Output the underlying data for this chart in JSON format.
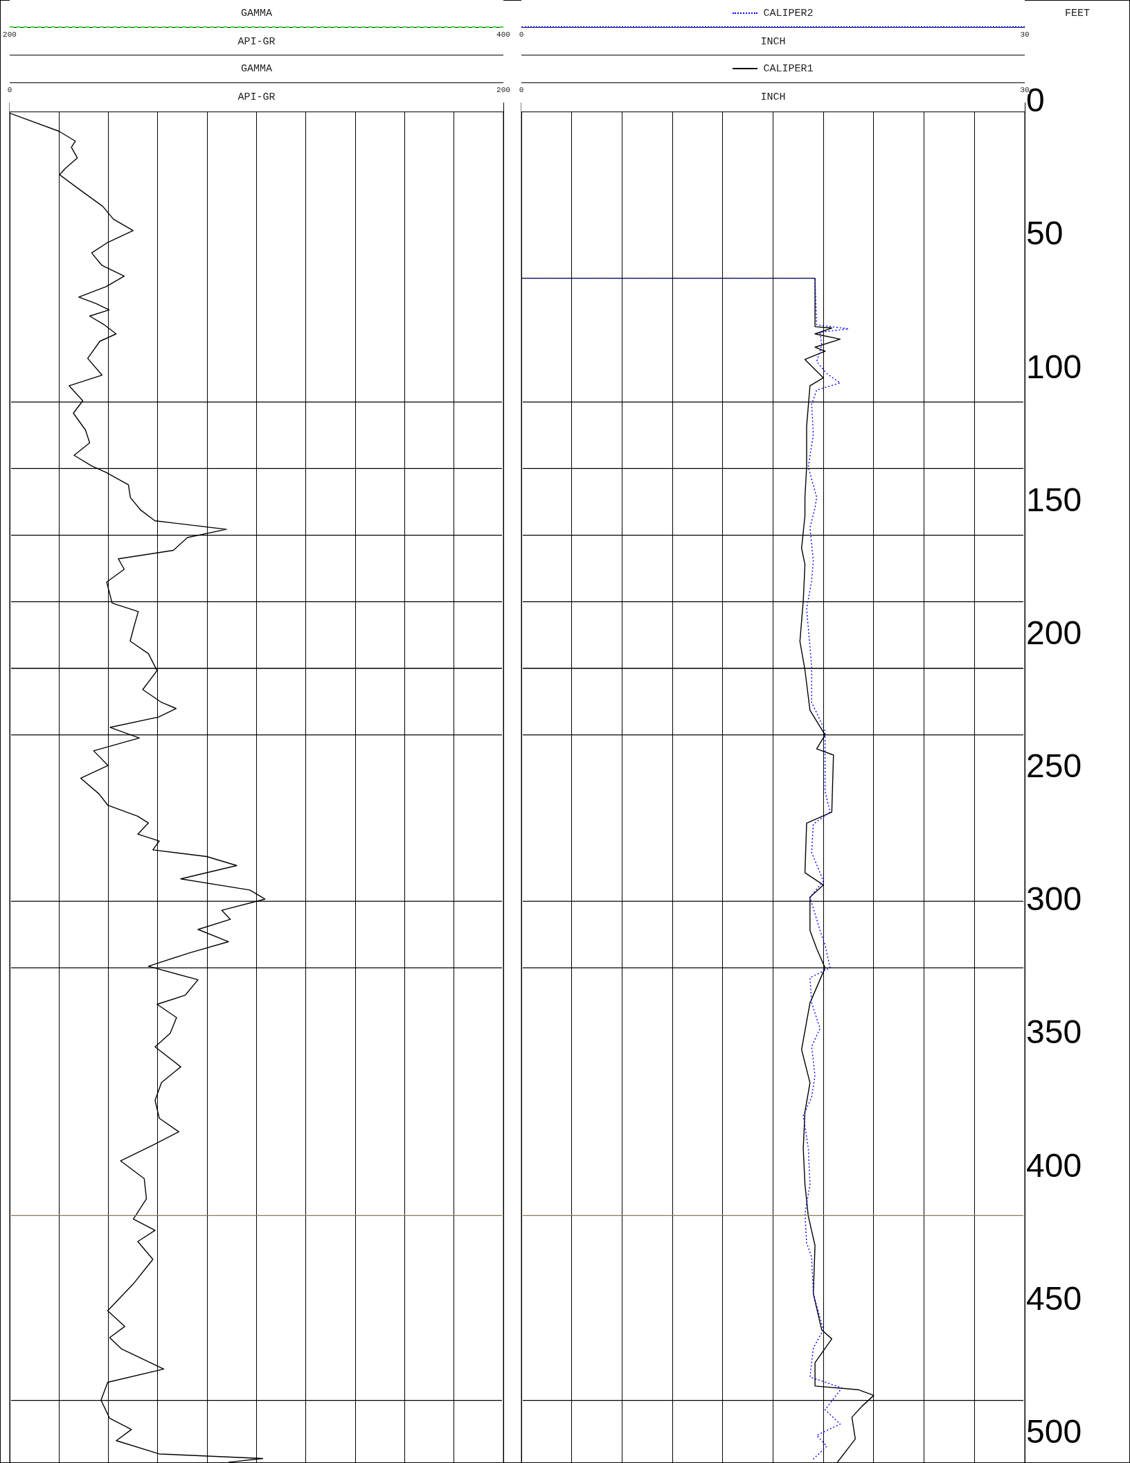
{
  "chart_data": [
    {
      "type": "line",
      "orientation": "horizontal",
      "title": "GAMMA",
      "xlabel": "API-GR",
      "x2label": "API-GR",
      "xlim": [
        0,
        200
      ],
      "x2lim": [
        200,
        400
      ],
      "ylim": [
        511,
        0
      ],
      "xticks": [
        0,
        {
          "value": 20,
          "label": null
        },
        {
          "value": 40,
          "label": null
        },
        {
          "value": 60,
          "label": null
        },
        {
          "value": 80,
          "label": null
        },
        {
          "value": 100,
          "label": null
        },
        {
          "value": 120,
          "label": null
        },
        {
          "value": 140,
          "label": null
        },
        {
          "value": 160,
          "label": null
        },
        {
          "value": 180,
          "label": null
        },
        200
      ],
      "x2ticks": [
        200,
        400
      ],
      "grid": "x",
      "tick_labels": "x",
      "line_style": "solid",
      "ref_lines": [
        {
          "axis": "y",
          "value": 112.5,
          "color": "#000000"
        },
        {
          "axis": "y",
          "value": 137.5,
          "color": "#000000"
        },
        {
          "axis": "y",
          "value": 162.5,
          "color": "#000000"
        },
        {
          "axis": "y",
          "value": 187.5,
          "color": "#000000"
        },
        {
          "axis": "y",
          "value": 212.5,
          "color": "#000000"
        },
        {
          "axis": "y",
          "value": 237.5,
          "color": "#000000"
        },
        {
          "axis": "y",
          "value": 300,
          "color": "#000000"
        },
        {
          "axis": "y",
          "value": 325,
          "color": "#000000"
        },
        {
          "axis": "y",
          "value": 418,
          "color": "#8b7355"
        },
        {
          "axis": "y",
          "value": 487.5,
          "color": "#000000"
        }
      ],
      "series": [
        {
          "name": "GAMMA",
          "color": "#000000",
          "x": [
            4,
            10.8,
            14.5,
            16.8,
            20.8,
            24.8,
            27.1,
            32.7,
            39,
            43.8,
            48.1,
            52.5,
            56.5,
            61.2,
            65.2,
            69.2,
            73.1,
            75.5,
            77.9,
            80.2,
            83.4,
            86.9,
            89.7,
            96.1,
            102.4,
            106.4,
            112,
            116.7,
            123,
            127.8,
            132.5,
            136.5,
            138.9,
            143.6,
            148.4,
            153.1,
            157.1,
            160.3,
            163.4,
            168.2,
            171.4,
            175.3,
            180.1,
            188,
            191.2,
            196.7,
            202.3,
            207,
            213.4,
            220.5,
            225.2,
            227.6,
            230.8,
            234.7,
            238.7,
            243.5,
            249,
            253.8,
            259.7,
            263.9,
            268.1,
            270.6,
            274.8,
            277.4,
            280.7,
            283.2,
            286.6,
            291.6,
            295.8,
            299.2,
            303.4,
            306.8,
            310.6,
            315.2,
            319.4,
            324.4,
            329.5,
            335.3,
            338.7,
            343.7,
            349.6,
            354.7,
            362.2,
            368.1,
            374.8,
            381.5,
            386.6,
            391.6,
            397.5,
            404.2,
            411.8,
            419.4,
            423.6,
            427.8,
            434.5,
            443.7,
            453.8,
            459.7,
            463.9,
            468.1,
            475.7,
            480.7,
            487.4,
            494.2,
            498.4,
            502.6,
            507.6,
            509.3,
            510.7
          ],
          "values": [
            0,
            20,
            26.6,
            25,
            27.4,
            22.5,
            20.2,
            28.3,
            37.7,
            42,
            50,
            39.8,
            33.2,
            37.4,
            46.4,
            39,
            28,
            34.9,
            40.3,
            32.4,
            38.2,
            43.1,
            36.5,
            31.6,
            37.4,
            24.1,
            29.6,
            25.8,
            30.7,
            32.4,
            26.1,
            33.2,
            39,
            48.1,
            48.9,
            53.1,
            58.8,
            87.8,
            72,
            66.3,
            44,
            46.4,
            39.3,
            41.5,
            52.1,
            50.4,
            48.8,
            56.2,
            59.7,
            53.9,
            61.3,
            67.4,
            60.3,
            40.7,
            52.5,
            34,
            39.8,
            28.8,
            36.2,
            39.7,
            51.9,
            56.2,
            51.9,
            60.6,
            58,
            79.8,
            92,
            69.3,
            97.3,
            103.4,
            85.9,
            89.4,
            76.3,
            88.6,
            72.8,
            56.2,
            76.3,
            71.1,
            59.7,
            67.6,
            65,
            58.9,
            69.3,
            61.5,
            58.9,
            60.6,
            68.5,
            58,
            44.9,
            54.5,
            55.4,
            50.1,
            58.9,
            51.9,
            58,
            50.1,
            39.7,
            46.6,
            40.5,
            45.2,
            62.4,
            39.7,
            37,
            40.5,
            49.3,
            43.2,
            60.6,
            102.5,
            88.6
          ]
        }
      ]
    },
    {
      "type": "line",
      "orientation": "horizontal",
      "xlabel": "INCH",
      "x2label": "INCH",
      "ylabel": "FEET",
      "xlim": [
        0,
        30
      ],
      "x2lim": [
        0,
        30
      ],
      "ylim": [
        511,
        0
      ],
      "xticks": [
        0,
        {
          "value": 3,
          "label": null
        },
        {
          "value": 6,
          "label": null
        },
        {
          "value": 9,
          "label": null
        },
        {
          "value": 12,
          "label": null
        },
        {
          "value": 15,
          "label": null
        },
        {
          "value": 18,
          "label": null
        },
        {
          "value": 21,
          "label": null
        },
        {
          "value": 24,
          "label": null
        },
        {
          "value": 27,
          "label": null
        },
        30
      ],
      "x2ticks": [
        0,
        30
      ],
      "yticks": [
        0,
        50,
        100,
        150,
        200,
        250,
        300,
        350,
        400,
        450,
        500
      ],
      "grid": "x",
      "legend": "top",
      "ref_lines": [
        {
          "axis": "y",
          "value": 112.5,
          "color": "#000000"
        },
        {
          "axis": "y",
          "value": 137.5,
          "color": "#000000"
        },
        {
          "axis": "y",
          "value": 162.5,
          "color": "#000000"
        },
        {
          "axis": "y",
          "value": 187.5,
          "color": "#000000"
        },
        {
          "axis": "y",
          "value": 212.5,
          "color": "#000000"
        },
        {
          "axis": "y",
          "value": 237.5,
          "color": "#000000"
        },
        {
          "axis": "y",
          "value": 300,
          "color": "#000000"
        },
        {
          "axis": "y",
          "value": 325,
          "color": "#000000"
        },
        {
          "axis": "y",
          "value": 418,
          "color": "#8b7355"
        },
        {
          "axis": "y",
          "value": 487.5,
          "color": "#000000"
        }
      ],
      "series": [
        {
          "name": "CALIPER2",
          "color": "#0000ff",
          "axis": "x2",
          "line_style": "dotted",
          "x": [
            66,
            66,
            83.5,
            85,
            86.3,
            91.2,
            97.3,
            101.8,
            105.3,
            108,
            113.3,
            124.7,
            136.9,
            148.3,
            152.1,
            159.8,
            172,
            179.6,
            190.2,
            211.6,
            225.3,
            236,
            243.6,
            258.8,
            266.5,
            271,
            281.7,
            292.4,
            298.5,
            311,
            316.4,
            325,
            328.7,
            338.2,
            347.8,
            354.6,
            365.5,
            373.6,
            380.5,
            392.8,
            406.4,
            417.4,
            428.3,
            433.7,
            447.4,
            461,
            467.8,
            478.7,
            482.8,
            491,
            496.4,
            500.6,
            504.7,
            510.1
          ],
          "values": [
            0,
            17.5,
            17.6,
            19.5,
            17.8,
            17.9,
            17.6,
            18.2,
            19,
            17.6,
            17.3,
            17.4,
            17.1,
            17.6,
            17.5,
            17.2,
            17.4,
            17.3,
            17,
            17.3,
            17.3,
            18.1,
            18.1,
            18.1,
            18.4,
            17.4,
            17.3,
            18,
            17.2,
            17.8,
            18.1,
            18.4,
            17.2,
            17.3,
            17.8,
            17.3,
            17.5,
            17.3,
            16.8,
            17.1,
            17.2,
            16.9,
            17,
            17.3,
            17.4,
            18,
            17.4,
            17.2,
            19.1,
            18.1,
            19,
            17.6,
            18.2,
            17.3
          ]
        },
        {
          "name": "CALIPER1",
          "color": "#000000",
          "line_style": "solid",
          "x": [
            66,
            66,
            84.2,
            84.7,
            86.9,
            88.9,
            91.9,
            93.4,
            96.5,
            103.4,
            106.4,
            121.6,
            136.9,
            148.3,
            155.2,
            167.4,
            173.5,
            187.2,
            202.4,
            213.1,
            228.3,
            237.5,
            242.8,
            245.1,
            266.5,
            270.7,
            289.3,
            293.9,
            298.5,
            311,
            317.8,
            325,
            338.2,
            355.7,
            368.2,
            379.1,
            392.8,
            406.4,
            418.3,
            429.3,
            447.4,
            461,
            464.4,
            473.3,
            482.1,
            483.5,
            485.6,
            489.7,
            493.8,
            502,
            511
          ],
          "values": [
            0,
            17.5,
            17.5,
            18.5,
            17.5,
            19,
            17.5,
            18.1,
            16.9,
            18,
            17.2,
            17,
            17,
            16.9,
            16.9,
            16.7,
            16.9,
            16.8,
            16.6,
            16.9,
            17.2,
            18.1,
            17.6,
            18.6,
            18.5,
            17,
            16.9,
            18,
            17.2,
            17.2,
            17.6,
            18.1,
            17.2,
            16.7,
            17.2,
            16.9,
            16.8,
            16.9,
            17.1,
            17.5,
            17.4,
            17.9,
            18.5,
            17.5,
            17.5,
            20.1,
            21,
            20.3,
            19.7,
            19.9,
            18.8
          ]
        }
      ]
    }
  ]
}
